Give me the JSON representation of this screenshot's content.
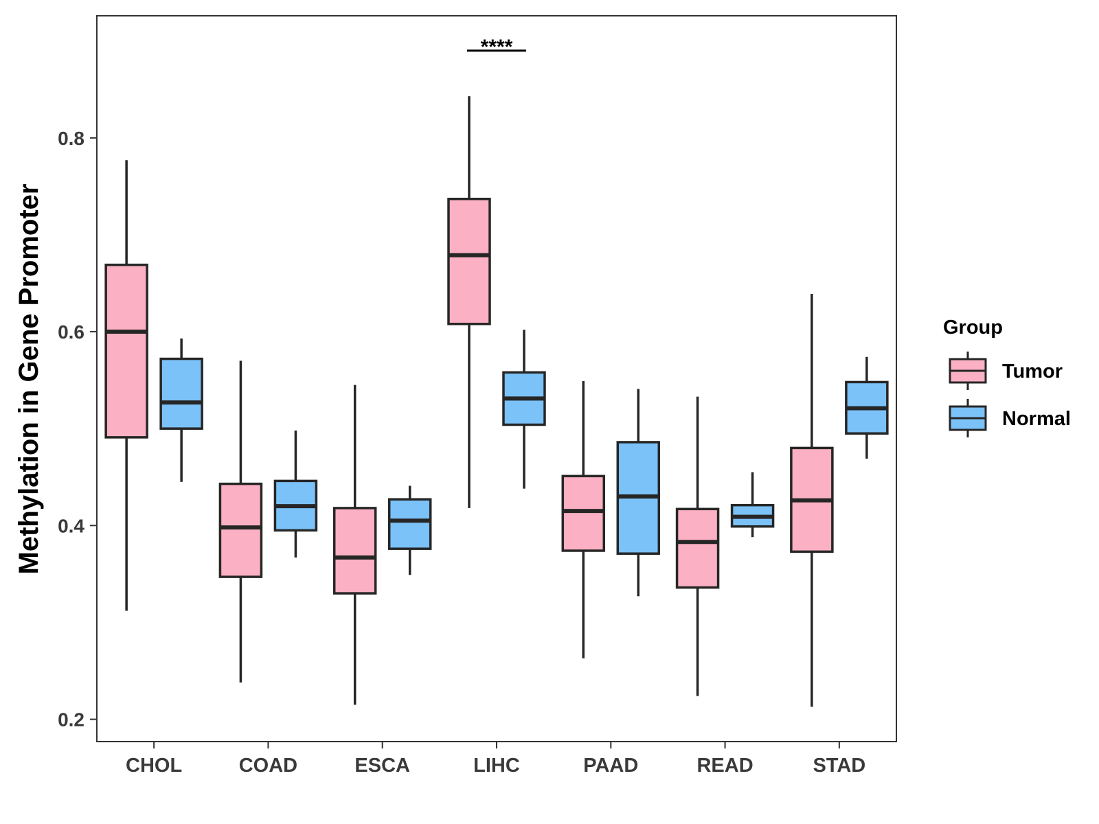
{
  "chart_data": {
    "type": "boxplot",
    "title": "",
    "xlabel": "",
    "ylabel": "Methylation in Gene Promoter",
    "ylim": [
      0.177,
      0.926
    ],
    "yticks": [
      0.2,
      0.4,
      0.6,
      0.8
    ],
    "ytick_labels": [
      "0.2",
      "0.4",
      "0.6",
      "0.8"
    ],
    "categories": [
      "CHOL",
      "COAD",
      "ESCA",
      "LIHC",
      "PAAD",
      "READ",
      "STAD"
    ],
    "legend": {
      "title": "Group",
      "position": "right",
      "entries": [
        "Tumor",
        "Normal"
      ]
    },
    "series": [
      {
        "name": "Tumor",
        "color": "#FBB1C3",
        "boxes": [
          {
            "min": 0.312,
            "q1": 0.491,
            "median": 0.6,
            "q3": 0.669,
            "max": 0.777
          },
          {
            "min": 0.238,
            "q1": 0.347,
            "median": 0.398,
            "q3": 0.443,
            "max": 0.57
          },
          {
            "min": 0.215,
            "q1": 0.33,
            "median": 0.367,
            "q3": 0.418,
            "max": 0.545
          },
          {
            "min": 0.418,
            "q1": 0.608,
            "median": 0.679,
            "q3": 0.737,
            "max": 0.843
          },
          {
            "min": 0.263,
            "q1": 0.374,
            "median": 0.415,
            "q3": 0.451,
            "max": 0.549
          },
          {
            "min": 0.224,
            "q1": 0.336,
            "median": 0.383,
            "q3": 0.417,
            "max": 0.533
          },
          {
            "min": 0.213,
            "q1": 0.373,
            "median": 0.426,
            "q3": 0.48,
            "max": 0.639
          }
        ]
      },
      {
        "name": "Normal",
        "color": "#7BC2F8",
        "boxes": [
          {
            "min": 0.445,
            "q1": 0.5,
            "median": 0.527,
            "q3": 0.572,
            "max": 0.593
          },
          {
            "min": 0.367,
            "q1": 0.395,
            "median": 0.42,
            "q3": 0.446,
            "max": 0.498
          },
          {
            "min": 0.349,
            "q1": 0.376,
            "median": 0.405,
            "q3": 0.427,
            "max": 0.441
          },
          {
            "min": 0.438,
            "q1": 0.504,
            "median": 0.531,
            "q3": 0.558,
            "max": 0.602
          },
          {
            "min": 0.327,
            "q1": 0.371,
            "median": 0.43,
            "q3": 0.486,
            "max": 0.541
          },
          {
            "min": 0.388,
            "q1": 0.399,
            "median": 0.409,
            "q3": 0.421,
            "max": 0.455
          },
          {
            "min": 0.469,
            "q1": 0.495,
            "median": 0.521,
            "q3": 0.548,
            "max": 0.574
          }
        ]
      }
    ],
    "annotations": [
      {
        "text": "****",
        "category": "LIHC",
        "y": 0.89
      }
    ]
  }
}
